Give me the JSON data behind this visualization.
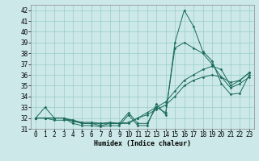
{
  "xlabel": "Humidex (Indice chaleur)",
  "ylabel": "",
  "bg_color": "#cce8e8",
  "grid_color": "#99cccc",
  "line_color": "#1a6b5a",
  "xlim": [
    -0.5,
    23.5
  ],
  "ylim": [
    31,
    42.5
  ],
  "yticks": [
    31,
    32,
    33,
    34,
    35,
    36,
    37,
    38,
    39,
    40,
    41,
    42
  ],
  "xticks": [
    0,
    1,
    2,
    3,
    4,
    5,
    6,
    7,
    8,
    9,
    10,
    11,
    12,
    13,
    14,
    15,
    16,
    17,
    18,
    19,
    20,
    21,
    22,
    23
  ],
  "series": [
    {
      "x": [
        0,
        1,
        2,
        3,
        4,
        5,
        6,
        7,
        8,
        9,
        10,
        11,
        12,
        13,
        14,
        15,
        16,
        17,
        18,
        19,
        20,
        21,
        22,
        23
      ],
      "y": [
        32.0,
        33.0,
        32.0,
        32.0,
        31.5,
        31.3,
        31.3,
        31.2,
        31.3,
        31.3,
        32.3,
        31.3,
        31.3,
        33.3,
        32.3,
        39.0,
        42.0,
        40.5,
        38.2,
        37.3,
        35.2,
        34.2,
        34.3,
        36.0
      ]
    },
    {
      "x": [
        0,
        1,
        2,
        3,
        4,
        5,
        6,
        7,
        8,
        9,
        10,
        11,
        12,
        13,
        14,
        15,
        16,
        17,
        18,
        19,
        20,
        21,
        22,
        23
      ],
      "y": [
        32.0,
        32.0,
        31.8,
        31.8,
        31.8,
        31.5,
        31.5,
        31.3,
        31.5,
        31.5,
        32.5,
        31.5,
        31.5,
        33.0,
        32.5,
        38.5,
        39.0,
        38.5,
        38.0,
        37.0,
        35.8,
        35.3,
        35.5,
        36.2
      ]
    },
    {
      "x": [
        0,
        1,
        2,
        3,
        4,
        5,
        6,
        7,
        8,
        9,
        10,
        11,
        12,
        13,
        14,
        15,
        16,
        17,
        18,
        19,
        20,
        21,
        22,
        23
      ],
      "y": [
        32.0,
        32.0,
        32.0,
        32.0,
        31.7,
        31.5,
        31.5,
        31.5,
        31.5,
        31.5,
        31.5,
        32.0,
        32.5,
        33.0,
        33.5,
        34.5,
        35.5,
        36.0,
        36.5,
        36.8,
        36.5,
        35.0,
        35.5,
        36.2
      ]
    },
    {
      "x": [
        0,
        1,
        2,
        3,
        4,
        5,
        6,
        7,
        8,
        9,
        10,
        11,
        12,
        13,
        14,
        15,
        16,
        17,
        18,
        19,
        20,
        21,
        22,
        23
      ],
      "y": [
        32.0,
        32.0,
        32.0,
        32.0,
        31.8,
        31.6,
        31.6,
        31.5,
        31.6,
        31.5,
        31.6,
        32.0,
        32.3,
        32.8,
        33.2,
        34.0,
        35.0,
        35.5,
        35.8,
        36.0,
        35.8,
        34.8,
        35.2,
        35.8
      ]
    }
  ]
}
